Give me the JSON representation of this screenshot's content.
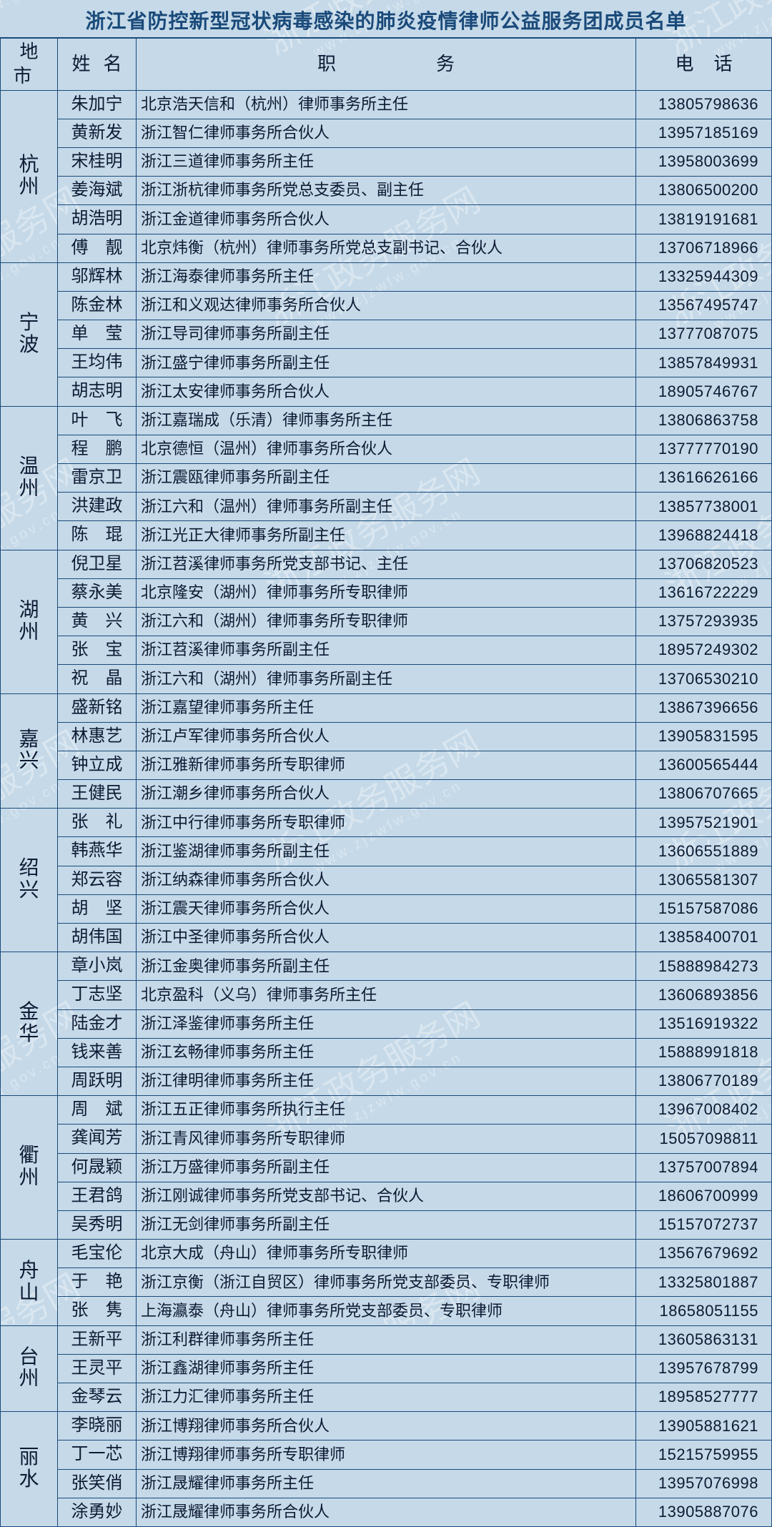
{
  "title": "浙江省防控新型冠状病毒感染的肺炎疫情律师公益服务团成员名单",
  "columns": {
    "city": "地市",
    "name": "姓名",
    "position": "职务",
    "phone": "电话"
  },
  "watermark": {
    "text": "浙江政务服务网",
    "url": "www.zjzwfw.gov.cn"
  },
  "cities": [
    {
      "city": "杭州",
      "members": [
        {
          "name": "朱加宁",
          "position": "北京浩天信和（杭州）律师事务所主任",
          "phone": "13805798636"
        },
        {
          "name": "黄新发",
          "position": "浙江智仁律师事务所合伙人",
          "phone": "13957185169"
        },
        {
          "name": "宋桂明",
          "position": "浙江三道律师事务所主任",
          "phone": "13958003699"
        },
        {
          "name": "姜海斌",
          "position": "浙江浙杭律师事务所党总支委员、副主任",
          "phone": "13806500200"
        },
        {
          "name": "胡浩明",
          "position": "浙江金道律师事务所合伙人",
          "phone": "13819191681"
        },
        {
          "name": "傅　靓",
          "position": "北京炜衡（杭州）律师事务所党总支副书记、合伙人",
          "phone": "13706718966"
        }
      ]
    },
    {
      "city": "宁波",
      "members": [
        {
          "name": "邬辉林",
          "position": "浙江海泰律师事务所主任",
          "phone": "13325944309"
        },
        {
          "name": "陈金林",
          "position": "浙江和义观达律师事务所合伙人",
          "phone": "13567495747"
        },
        {
          "name": "单　莹",
          "position": "浙江导司律师事务所副主任",
          "phone": "13777087075"
        },
        {
          "name": "王均伟",
          "position": "浙江盛宁律师事务所副主任",
          "phone": "13857849931"
        },
        {
          "name": "胡志明",
          "position": "浙江太安律师事务所合伙人",
          "phone": "18905746767"
        }
      ]
    },
    {
      "city": "温州",
      "members": [
        {
          "name": "叶　飞",
          "position": "浙江嘉瑞成（乐清）律师事务所主任",
          "phone": "13806863758"
        },
        {
          "name": "程　鹏",
          "position": "北京德恒（温州）律师事务所合伙人",
          "phone": "13777770190"
        },
        {
          "name": "雷京卫",
          "position": "浙江震瓯律师事务所副主任",
          "phone": "13616626166"
        },
        {
          "name": "洪建政",
          "position": "浙江六和（温州）律师事务所副主任",
          "phone": "13857738001"
        },
        {
          "name": "陈　琨",
          "position": "浙江光正大律师事务所副主任",
          "phone": "13968824418"
        }
      ]
    },
    {
      "city": "湖州",
      "members": [
        {
          "name": "倪卫星",
          "position": "浙江苕溪律师事务所党支部书记、主任",
          "phone": "13706820523"
        },
        {
          "name": "蔡永美",
          "position": "北京隆安（湖州）律师事务所专职律师",
          "phone": "13616722229"
        },
        {
          "name": "黄　兴",
          "position": "浙江六和（湖州）律师事务所专职律师",
          "phone": "13757293935"
        },
        {
          "name": "张　宝",
          "position": "浙江苕溪律师事务所副主任",
          "phone": "18957249302"
        },
        {
          "name": "祝　晶",
          "position": "浙江六和（湖州）律师事务所副主任",
          "phone": "13706530210"
        }
      ]
    },
    {
      "city": "嘉兴",
      "members": [
        {
          "name": "盛新铭",
          "position": "浙江嘉望律师事务所主任",
          "phone": "13867396656"
        },
        {
          "name": "林惠艺",
          "position": "浙江卢军律师事务所合伙人",
          "phone": "13905831595"
        },
        {
          "name": "钟立成",
          "position": "浙江雅新律师事务所专职律师",
          "phone": "13600565444"
        },
        {
          "name": "王健民",
          "position": "浙江潮乡律师事务所合伙人",
          "phone": "13806707665"
        }
      ]
    },
    {
      "city": "绍兴",
      "members": [
        {
          "name": "张　礼",
          "position": "浙江中行律师事务所专职律师",
          "phone": "13957521901"
        },
        {
          "name": "韩燕华",
          "position": "浙江鉴湖律师事务所副主任",
          "phone": "13606551889"
        },
        {
          "name": "郑云容",
          "position": "浙江纳森律师事务所合伙人",
          "phone": "13065581307"
        },
        {
          "name": "胡　坚",
          "position": "浙江震天律师事务所合伙人",
          "phone": "15157587086"
        },
        {
          "name": "胡伟国",
          "position": "浙江中圣律师事务所合伙人",
          "phone": "13858400701"
        }
      ]
    },
    {
      "city": "金华",
      "members": [
        {
          "name": "章小岚",
          "position": "浙江金奥律师事务所副主任",
          "phone": "15888984273"
        },
        {
          "name": "丁志坚",
          "position": "北京盈科（义乌）律师事务所主任",
          "phone": "13606893856"
        },
        {
          "name": "陆金才",
          "position": "浙江泽鉴律师事务所主任",
          "phone": "13516919322"
        },
        {
          "name": "钱来善",
          "position": "浙江玄畅律师事务所主任",
          "phone": "15888991818"
        },
        {
          "name": "周跃明",
          "position": "浙江律明律师事务所主任",
          "phone": "13806770189"
        }
      ]
    },
    {
      "city": "衢州",
      "members": [
        {
          "name": "周　斌",
          "position": "浙江五正律师事务所执行主任",
          "phone": "13967008402"
        },
        {
          "name": "龚闻芳",
          "position": "浙江青风律师事务所专职律师",
          "phone": "15057098811"
        },
        {
          "name": "何晟颖",
          "position": "浙江万盛律师事务所副主任",
          "phone": "13757007894"
        },
        {
          "name": "王君鸽",
          "position": "浙江刚诚律师事务所党支部书记、合伙人",
          "phone": "18606700999"
        },
        {
          "name": "吴秀明",
          "position": "浙江无剑律师事务所副主任",
          "phone": "15157072737"
        }
      ]
    },
    {
      "city": "舟山",
      "members": [
        {
          "name": "毛宝伦",
          "position": "北京大成（舟山）律师事务所专职律师",
          "phone": "13567679692"
        },
        {
          "name": "于　艳",
          "position": "浙江京衡（浙江自贸区）律师事务所党支部委员、专职律师",
          "phone": "13325801887"
        },
        {
          "name": "张　隽",
          "position": "上海瀛泰（舟山）律师事务所党支部委员、专职律师",
          "phone": "18658051155"
        }
      ]
    },
    {
      "city": "台州",
      "members": [
        {
          "name": "王新平",
          "position": "浙江利群律师事务所主任",
          "phone": "13605863131"
        },
        {
          "name": "王灵平",
          "position": "浙江鑫湖律师事务所主任",
          "phone": "13957678799"
        },
        {
          "name": "金琴云",
          "position": "浙江力汇律师事务所主任",
          "phone": "18958527777"
        }
      ]
    },
    {
      "city": "丽水",
      "members": [
        {
          "name": "李晓丽",
          "position": "浙江博翔律师事务所合伙人",
          "phone": "13905881621"
        },
        {
          "name": "丁一芯",
          "position": "浙江博翔律师事务所专职律师",
          "phone": "15215759955"
        },
        {
          "name": "张笑俏",
          "position": "浙江晟耀律师事务所主任",
          "phone": "13957076998"
        },
        {
          "name": "涂勇妙",
          "position": "浙江晟耀律师事务所合伙人",
          "phone": "13905887076"
        }
      ]
    }
  ]
}
